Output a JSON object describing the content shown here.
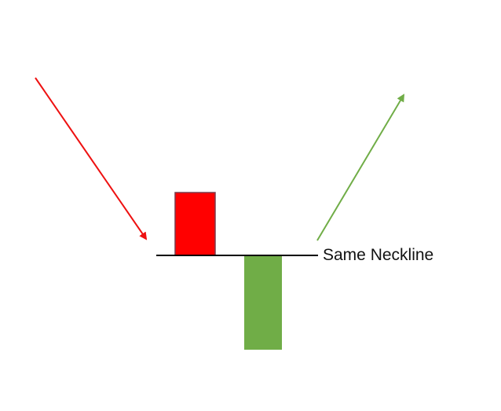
{
  "labels": {
    "neckline": "Same Neckline"
  },
  "colors": {
    "bearish_candle": "#ff0000",
    "bearish_candle_border": "#7a3a4a",
    "bullish_candle": "#70ad47",
    "down_arrow": "#ee1111",
    "up_arrow": "#70ad47",
    "neckline": "#000000"
  },
  "icons": {
    "down_arrow": "arrow-down-right-icon",
    "up_arrow": "arrow-up-right-icon"
  }
}
